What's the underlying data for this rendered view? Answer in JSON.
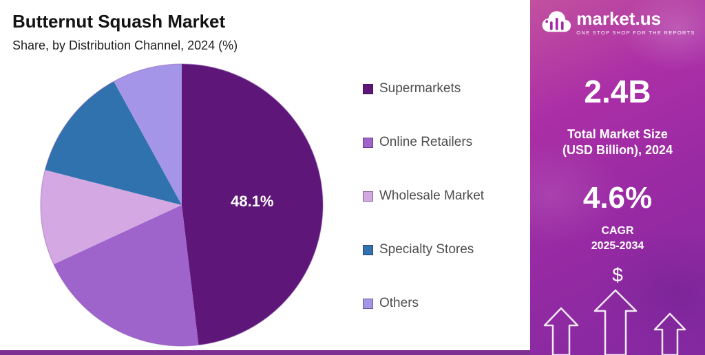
{
  "header": {
    "title": "Butternut Squash Market",
    "subtitle": "Share, by Distribution Channel, 2024 (%)"
  },
  "chart_data": {
    "type": "pie",
    "title": "Butternut Squash Market",
    "subtitle": "Share, by Distribution Channel, 2024 (%)",
    "unit": "percent",
    "start_angle_deg": -90,
    "direction": "clockwise",
    "legend_position": "right",
    "slices": [
      {
        "label": "Supermarkets",
        "value": 48.1,
        "color": "#5e1778",
        "display_label": "48.1%"
      },
      {
        "label": "Online Retailers",
        "value": 20.0,
        "color": "#9f63cc"
      },
      {
        "label": "Wholesale Market",
        "value": 10.9,
        "color": "#d4a8e3"
      },
      {
        "label": "Specialty Stores",
        "value": 13.0,
        "color": "#2f72ad"
      },
      {
        "label": "Others",
        "value": 8.0,
        "color": "#a495e9"
      }
    ]
  },
  "sidebar": {
    "logo": {
      "name": "market.us",
      "tagline": "ONE STOP SHOP FOR THE REPORTS"
    },
    "market_size": {
      "value": "2.4B",
      "label_line1": "Total Market Size",
      "label_line2": "(USD Billion), 2024"
    },
    "cagr": {
      "value": "4.6%",
      "label_line1": "CAGR",
      "label_line2": "2025-2034"
    },
    "dollar_symbol": "$"
  },
  "colors": {
    "panel_gradient_top": "#bb4bab",
    "panel_gradient_bottom": "#7e28a0",
    "bottom_strip": "#7e2f92",
    "legend_text": "#4d4d4d",
    "pie_value_label": "#ffffff"
  }
}
